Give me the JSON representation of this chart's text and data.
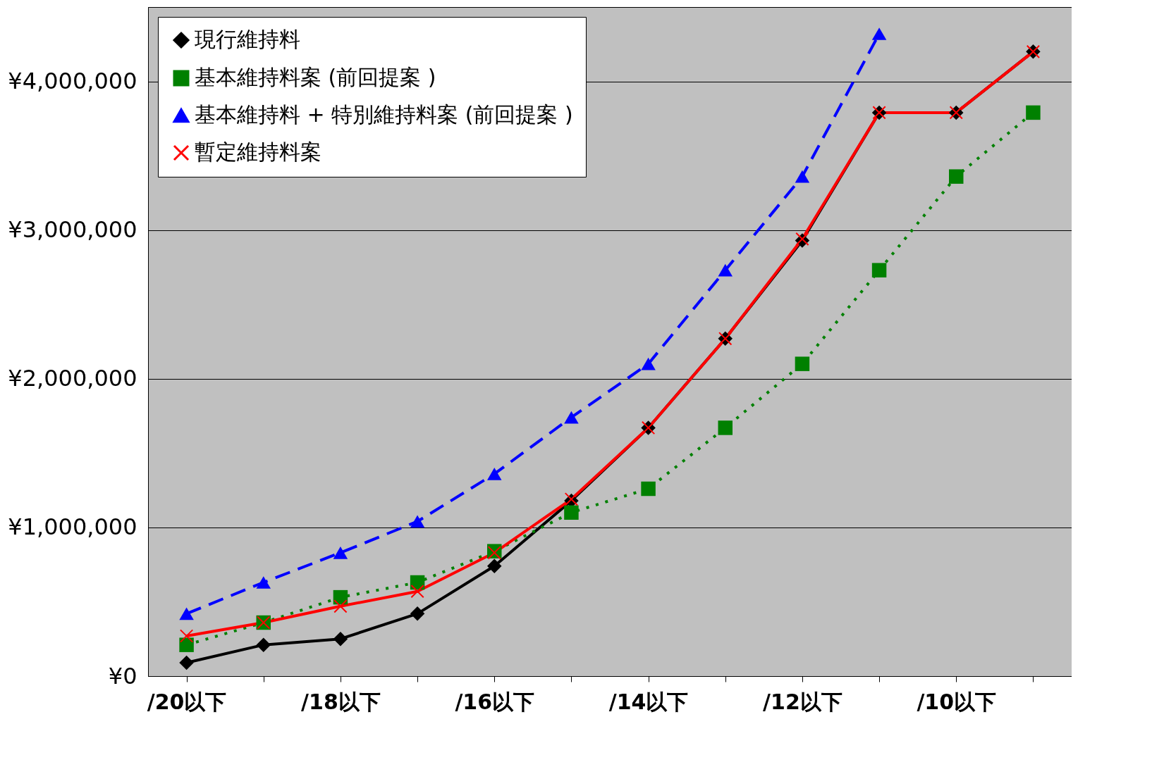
{
  "chart_data": {
    "type": "line",
    "categories": [
      "/20以下",
      null,
      "/18以下",
      null,
      "/16以下",
      null,
      "/14以下",
      null,
      "/12以下",
      null,
      "/10以下",
      null
    ],
    "ylim": [
      0,
      4500000
    ],
    "yticks": [
      {
        "value": 0,
        "label": "¥0"
      },
      {
        "value": 1000000,
        "label": "¥1,000,000"
      },
      {
        "value": 2000000,
        "label": "¥2,000,000"
      },
      {
        "value": 3000000,
        "label": "¥3,000,000"
      },
      {
        "value": 4000000,
        "label": "¥4,000,000"
      }
    ],
    "grid": "y",
    "legend": "top left",
    "series": [
      {
        "name": "現行維持料",
        "color": "#000000",
        "marker": "diamond",
        "line_style": "solid",
        "values": [
          90000,
          210000,
          250000,
          420000,
          740000,
          1180000,
          1670000,
          2270000,
          2930000,
          3790000,
          3790000,
          4200000
        ]
      },
      {
        "name": "基本維持料案 (前回提案 )",
        "color": "#008000",
        "marker": "square",
        "line_style": "dotted",
        "values": [
          210000,
          360000,
          530000,
          630000,
          840000,
          1100000,
          1260000,
          1670000,
          2100000,
          2730000,
          3360000,
          3790000
        ]
      },
      {
        "name": "基本維持料 + 特別維持料案 (前回提案 )",
        "color": "#0000ff",
        "marker": "triangle",
        "line_style": "dashed",
        "values": [
          420000,
          630000,
          830000,
          1040000,
          1360000,
          1740000,
          2100000,
          2730000,
          3360000,
          4320000,
          null,
          null
        ]
      },
      {
        "name": "暫定維持料案",
        "color": "#ff0000",
        "marker": "cross",
        "line_style": "solid",
        "values": [
          270000,
          360000,
          470000,
          570000,
          830000,
          1190000,
          1670000,
          2270000,
          2940000,
          3790000,
          3790000,
          4200000
        ]
      }
    ]
  }
}
